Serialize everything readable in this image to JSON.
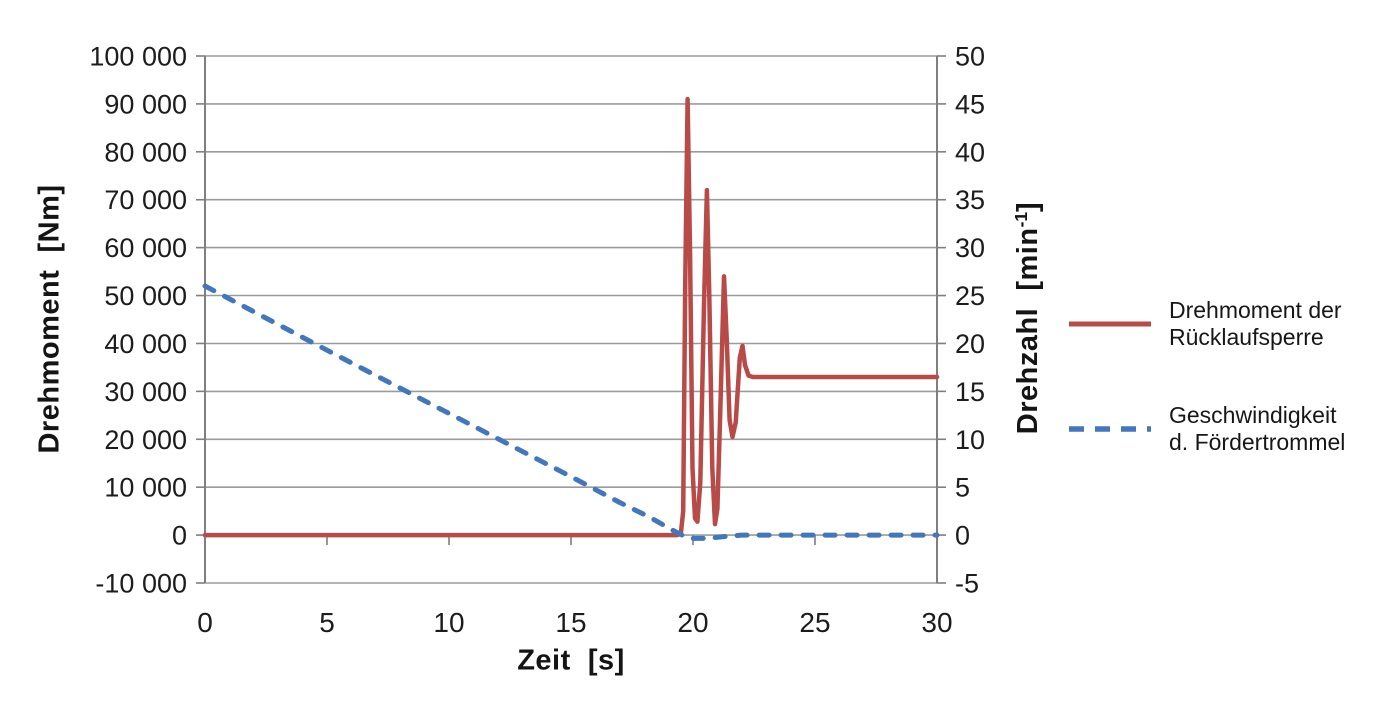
{
  "chart_data": {
    "type": "line",
    "title": "",
    "xlabel": "Zeit  [s]",
    "ylabel_left": "Drehmoment  [Nm]",
    "ylabel_right": {
      "main": "Drehzahl  [min",
      "sup": "-1",
      "close": "]"
    },
    "xlim": [
      0,
      30
    ],
    "ylim_left": [
      -10000,
      100000
    ],
    "ylim_right": [
      -5,
      50
    ],
    "grid": true,
    "legend_position": "right",
    "x_ticks": {
      "values": [
        0,
        5,
        10,
        15,
        20,
        25,
        30
      ],
      "labels": [
        "0",
        "5",
        "10",
        "15",
        "20",
        "25",
        "30"
      ]
    },
    "left_ticks": {
      "values": [
        100000,
        90000,
        80000,
        70000,
        60000,
        50000,
        40000,
        30000,
        20000,
        10000,
        0,
        -10000
      ],
      "labels": [
        "100 000",
        "90 000",
        "80 000",
        "70 000",
        "60 000",
        "50 000",
        "40 000",
        "30 000",
        "20 000",
        "10 000",
        "0",
        "-10 000"
      ]
    },
    "right_ticks": {
      "values": [
        50,
        45,
        40,
        35,
        30,
        25,
        20,
        15,
        10,
        5,
        0,
        -5
      ],
      "labels": [
        "50",
        "45",
        "40",
        "35",
        "30",
        "25",
        "20",
        "15",
        "10",
        "5",
        "0",
        "-5"
      ]
    },
    "colors": {
      "grid": "#9b9b9b",
      "axis": "#7f7f7f",
      "text": "#1c1c1c",
      "series_red": "#b84a47",
      "series_blue": "#4377bd"
    },
    "series": [
      {
        "name": "Drehmoment der Rücklaufsperre",
        "axis": "left",
        "unit": "Nm",
        "color": "#b84a47",
        "style": "solid",
        "width": 4.5,
        "points": [
          [
            0,
            0
          ],
          [
            19.35,
            0
          ],
          [
            19.5,
            300
          ],
          [
            19.6,
            5000
          ],
          [
            19.68,
            52000
          ],
          [
            19.78,
            91000
          ],
          [
            19.88,
            58000
          ],
          [
            19.98,
            14000
          ],
          [
            20.08,
            3500
          ],
          [
            20.18,
            2800
          ],
          [
            20.3,
            11000
          ],
          [
            20.45,
            48000
          ],
          [
            20.57,
            72000
          ],
          [
            20.67,
            50000
          ],
          [
            20.79,
            14000
          ],
          [
            20.9,
            2300
          ],
          [
            21.0,
            5500
          ],
          [
            21.12,
            26000
          ],
          [
            21.27,
            54000
          ],
          [
            21.38,
            41000
          ],
          [
            21.5,
            24000
          ],
          [
            21.62,
            20500
          ],
          [
            21.75,
            23500
          ],
          [
            21.92,
            37000
          ],
          [
            22.03,
            39500
          ],
          [
            22.13,
            35500
          ],
          [
            22.28,
            33300
          ],
          [
            22.45,
            33000
          ],
          [
            30,
            33000
          ]
        ]
      },
      {
        "name": "Geschwindigkeit d. Fördertrommel",
        "axis": "right",
        "unit": "min-1",
        "color": "#4377bd",
        "style": "dashed",
        "width": 5,
        "points": [
          [
            0,
            26
          ],
          [
            5,
            19.3
          ],
          [
            10,
            12.7
          ],
          [
            15,
            6.1
          ],
          [
            17,
            3.4
          ],
          [
            18.2,
            1.9
          ],
          [
            19.1,
            0.6
          ],
          [
            19.55,
            0
          ],
          [
            19.9,
            -0.35
          ],
          [
            20.6,
            -0.35
          ],
          [
            21.3,
            -0.15
          ],
          [
            22,
            0
          ],
          [
            30,
            0
          ]
        ]
      }
    ],
    "legend": {
      "items": [
        {
          "label": "Drehmoment der\nRücklaufsperre"
        },
        {
          "label": "Geschwindigkeit\nd. Fördertrommel"
        }
      ]
    }
  }
}
